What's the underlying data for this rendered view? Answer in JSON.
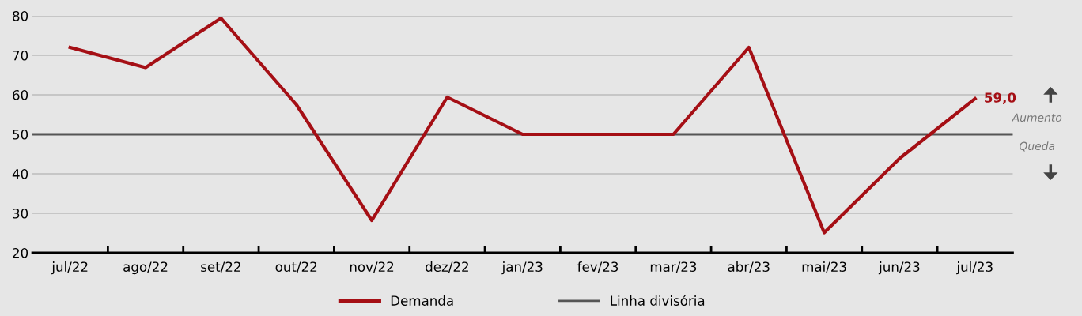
{
  "chart_data": {
    "type": "line",
    "categories": [
      "jul/22",
      "ago/22",
      "set/22",
      "out/22",
      "nov/22",
      "dez/22",
      "jan/23",
      "fev/23",
      "mar/23",
      "abr/23",
      "mai/23",
      "jun/23",
      "jul/23"
    ],
    "series": [
      {
        "name": "Demanda",
        "color": "#a50f15",
        "values": [
          72.0,
          66.9,
          79.4,
          57.5,
          28.2,
          59.4,
          50.0,
          50.0,
          50.0,
          72.0,
          25.1,
          43.9,
          59.0
        ],
        "value_labels": [
          null,
          null,
          null,
          null,
          null,
          null,
          null,
          null,
          null,
          null,
          null,
          null,
          "59,0"
        ]
      }
    ],
    "ylim": [
      20,
      80
    ],
    "yticks": [
      20,
      30,
      40,
      50,
      60,
      70,
      80
    ],
    "grid": "y",
    "legend": "bottom",
    "marker": "none",
    "line_style": "solid",
    "ref_lines": [
      {
        "axis": "y",
        "value": 50,
        "label": "Linha divisória",
        "color": "#555555",
        "line_style": "solid"
      }
    ],
    "annotations": [
      "Aumento",
      "Queda"
    ]
  }
}
